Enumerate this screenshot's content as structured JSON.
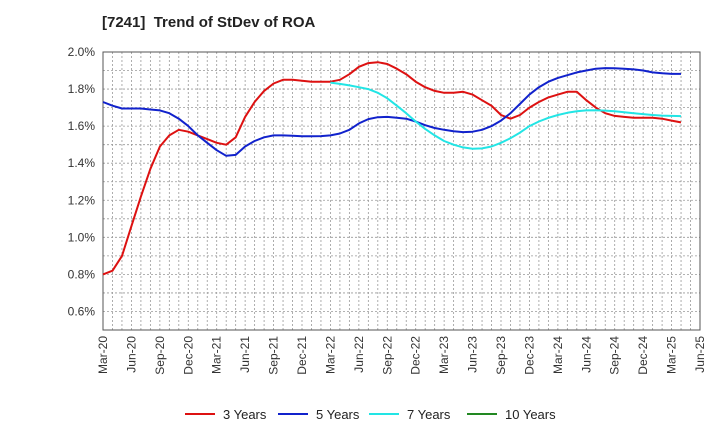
{
  "chart_data": {
    "type": "line",
    "title": "[7241]  Trend of StDev of ROA",
    "xlabel": "",
    "ylabel": "",
    "ylim": [
      0.5,
      2.0
    ],
    "yticks": [
      "0.6%",
      "0.8%",
      "1.0%",
      "1.2%",
      "1.4%",
      "1.6%",
      "1.8%",
      "2.0%"
    ],
    "ytick_values": [
      0.6,
      0.8,
      1.0,
      1.2,
      1.4,
      1.6,
      1.8,
      2.0
    ],
    "xticks": [
      "Mar-20",
      "Jun-20",
      "Sep-20",
      "Dec-20",
      "Mar-21",
      "Jun-21",
      "Sep-21",
      "Dec-21",
      "Mar-22",
      "Jun-22",
      "Sep-22",
      "Dec-22",
      "Mar-23",
      "Jun-23",
      "Sep-23",
      "Dec-23",
      "Mar-24",
      "Jun-24",
      "Sep-24",
      "Dec-24",
      "Mar-25",
      "Jun-25"
    ],
    "x_range": [
      "2020-03",
      "2025-06"
    ],
    "grid": true,
    "legend_position": "bottom",
    "series": [
      {
        "name": "3 Years",
        "color": "#dd1111",
        "points": [
          [
            "2020-03",
            0.8
          ],
          [
            "2020-04",
            0.82
          ],
          [
            "2020-05",
            0.9
          ],
          [
            "2020-06",
            1.06
          ],
          [
            "2020-07",
            1.22
          ],
          [
            "2020-08",
            1.37
          ],
          [
            "2020-09",
            1.49
          ],
          [
            "2020-10",
            1.55
          ],
          [
            "2020-11",
            1.58
          ],
          [
            "2020-12",
            1.57
          ],
          [
            "2021-01",
            1.55
          ],
          [
            "2021-02",
            1.53
          ],
          [
            "2021-03",
            1.51
          ],
          [
            "2021-04",
            1.5
          ],
          [
            "2021-05",
            1.54
          ],
          [
            "2021-06",
            1.65
          ],
          [
            "2021-07",
            1.73
          ],
          [
            "2021-08",
            1.79
          ],
          [
            "2021-09",
            1.83
          ],
          [
            "2021-10",
            1.85
          ],
          [
            "2021-11",
            1.85
          ],
          [
            "2021-12",
            1.845
          ],
          [
            "2022-01",
            1.84
          ],
          [
            "2022-02",
            1.84
          ],
          [
            "2022-03",
            1.84
          ],
          [
            "2022-04",
            1.85
          ],
          [
            "2022-05",
            1.88
          ],
          [
            "2022-06",
            1.92
          ],
          [
            "2022-07",
            1.94
          ],
          [
            "2022-08",
            1.945
          ],
          [
            "2022-09",
            1.935
          ],
          [
            "2022-10",
            1.91
          ],
          [
            "2022-11",
            1.88
          ],
          [
            "2022-12",
            1.84
          ],
          [
            "2023-01",
            1.81
          ],
          [
            "2023-02",
            1.79
          ],
          [
            "2023-03",
            1.78
          ],
          [
            "2023-04",
            1.78
          ],
          [
            "2023-05",
            1.785
          ],
          [
            "2023-06",
            1.77
          ],
          [
            "2023-07",
            1.74
          ],
          [
            "2023-08",
            1.71
          ],
          [
            "2023-09",
            1.66
          ],
          [
            "2023-10",
            1.64
          ],
          [
            "2023-11",
            1.66
          ],
          [
            "2023-12",
            1.7
          ],
          [
            "2024-01",
            1.73
          ],
          [
            "2024-02",
            1.755
          ],
          [
            "2024-03",
            1.77
          ],
          [
            "2024-04",
            1.785
          ],
          [
            "2024-05",
            1.785
          ],
          [
            "2024-06",
            1.74
          ],
          [
            "2024-07",
            1.7
          ],
          [
            "2024-08",
            1.67
          ],
          [
            "2024-09",
            1.655
          ],
          [
            "2024-10",
            1.65
          ],
          [
            "2024-11",
            1.645
          ],
          [
            "2024-12",
            1.645
          ],
          [
            "2025-01",
            1.645
          ],
          [
            "2025-02",
            1.64
          ],
          [
            "2025-03",
            1.63
          ],
          [
            "2025-04",
            1.62
          ]
        ]
      },
      {
        "name": "5 Years",
        "color": "#1122cc",
        "points": [
          [
            "2020-03",
            1.73
          ],
          [
            "2020-04",
            1.71
          ],
          [
            "2020-05",
            1.695
          ],
          [
            "2020-06",
            1.695
          ],
          [
            "2020-07",
            1.695
          ],
          [
            "2020-08",
            1.69
          ],
          [
            "2020-09",
            1.685
          ],
          [
            "2020-10",
            1.67
          ],
          [
            "2020-11",
            1.64
          ],
          [
            "2020-12",
            1.6
          ],
          [
            "2021-01",
            1.55
          ],
          [
            "2021-02",
            1.51
          ],
          [
            "2021-03",
            1.47
          ],
          [
            "2021-04",
            1.44
          ],
          [
            "2021-05",
            1.445
          ],
          [
            "2021-06",
            1.49
          ],
          [
            "2021-07",
            1.52
          ],
          [
            "2021-08",
            1.54
          ],
          [
            "2021-09",
            1.55
          ],
          [
            "2021-10",
            1.55
          ],
          [
            "2021-11",
            1.548
          ],
          [
            "2021-12",
            1.545
          ],
          [
            "2022-01",
            1.545
          ],
          [
            "2022-02",
            1.546
          ],
          [
            "2022-03",
            1.55
          ],
          [
            "2022-04",
            1.56
          ],
          [
            "2022-05",
            1.58
          ],
          [
            "2022-06",
            1.615
          ],
          [
            "2022-07",
            1.638
          ],
          [
            "2022-08",
            1.648
          ],
          [
            "2022-09",
            1.65
          ],
          [
            "2022-10",
            1.645
          ],
          [
            "2022-11",
            1.64
          ],
          [
            "2022-12",
            1.625
          ],
          [
            "2023-01",
            1.605
          ],
          [
            "2023-02",
            1.59
          ],
          [
            "2023-03",
            1.58
          ],
          [
            "2023-04",
            1.572
          ],
          [
            "2023-05",
            1.568
          ],
          [
            "2023-06",
            1.57
          ],
          [
            "2023-07",
            1.58
          ],
          [
            "2023-08",
            1.6
          ],
          [
            "2023-09",
            1.63
          ],
          [
            "2023-10",
            1.67
          ],
          [
            "2023-11",
            1.72
          ],
          [
            "2023-12",
            1.77
          ],
          [
            "2024-01",
            1.81
          ],
          [
            "2024-02",
            1.84
          ],
          [
            "2024-03",
            1.86
          ],
          [
            "2024-04",
            1.875
          ],
          [
            "2024-05",
            1.89
          ],
          [
            "2024-06",
            1.9
          ],
          [
            "2024-07",
            1.91
          ],
          [
            "2024-08",
            1.913
          ],
          [
            "2024-09",
            1.912
          ],
          [
            "2024-10",
            1.91
          ],
          [
            "2024-11",
            1.906
          ],
          [
            "2024-12",
            1.9
          ],
          [
            "2025-01",
            1.89
          ],
          [
            "2025-02",
            1.885
          ],
          [
            "2025-03",
            1.882
          ],
          [
            "2025-04",
            1.882
          ]
        ]
      },
      {
        "name": "7 Years",
        "color": "#22e5e5",
        "points": [
          [
            "2022-03",
            1.835
          ],
          [
            "2022-04",
            1.828
          ],
          [
            "2022-05",
            1.82
          ],
          [
            "2022-06",
            1.81
          ],
          [
            "2022-07",
            1.8
          ],
          [
            "2022-08",
            1.78
          ],
          [
            "2022-09",
            1.75
          ],
          [
            "2022-10",
            1.71
          ],
          [
            "2022-11",
            1.67
          ],
          [
            "2022-12",
            1.625
          ],
          [
            "2023-01",
            1.585
          ],
          [
            "2023-02",
            1.55
          ],
          [
            "2023-03",
            1.52
          ],
          [
            "2023-04",
            1.5
          ],
          [
            "2023-05",
            1.485
          ],
          [
            "2023-06",
            1.478
          ],
          [
            "2023-07",
            1.48
          ],
          [
            "2023-08",
            1.49
          ],
          [
            "2023-09",
            1.51
          ],
          [
            "2023-10",
            1.535
          ],
          [
            "2023-11",
            1.565
          ],
          [
            "2023-12",
            1.6
          ],
          [
            "2024-01",
            1.625
          ],
          [
            "2024-02",
            1.645
          ],
          [
            "2024-03",
            1.66
          ],
          [
            "2024-04",
            1.672
          ],
          [
            "2024-05",
            1.68
          ],
          [
            "2024-06",
            1.685
          ],
          [
            "2024-07",
            1.686
          ],
          [
            "2024-08",
            1.684
          ],
          [
            "2024-09",
            1.68
          ],
          [
            "2024-10",
            1.675
          ],
          [
            "2024-11",
            1.67
          ],
          [
            "2024-12",
            1.665
          ],
          [
            "2025-01",
            1.66
          ],
          [
            "2025-02",
            1.657
          ],
          [
            "2025-03",
            1.655
          ],
          [
            "2025-04",
            1.654
          ]
        ]
      },
      {
        "name": "10 Years",
        "color": "#228822",
        "points": []
      }
    ]
  }
}
